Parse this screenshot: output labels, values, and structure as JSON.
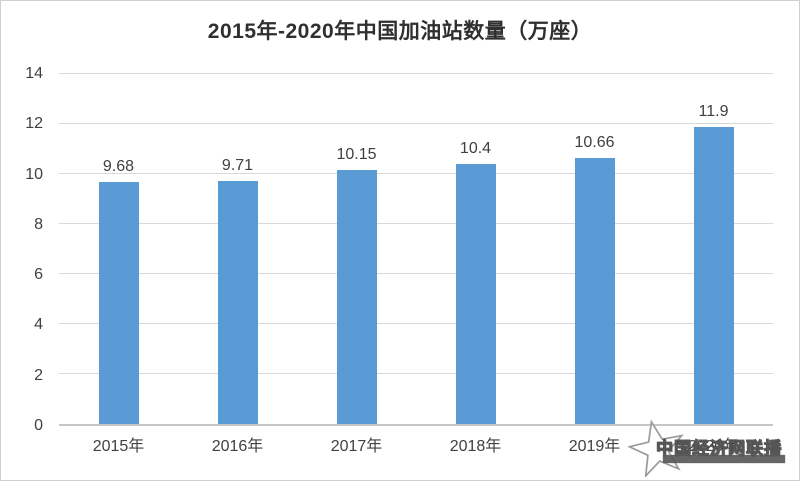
{
  "chart": {
    "title": "2015年-2020年中国加油站数量（万座）"
  },
  "chart_data": {
    "type": "bar",
    "title": "2015年-2020年中国加油站数量（万座）",
    "categories": [
      "2015年",
      "2016年",
      "2017年",
      "2018年",
      "2019年",
      "2020年"
    ],
    "values": [
      9.68,
      9.71,
      10.15,
      10.4,
      10.66,
      11.9
    ],
    "value_labels": [
      "9.68",
      "9.71",
      "10.15",
      "10.4",
      "10.66",
      "11.9"
    ],
    "xlabel": "",
    "ylabel": "",
    "ylim": [
      0,
      14
    ],
    "yticks": [
      0,
      2,
      4,
      6,
      8,
      10,
      12,
      14
    ],
    "grid": "horizontal",
    "legend": "none",
    "bar_color": "#5B9BD5"
  },
  "watermark": {
    "text": "中国经济网联播"
  },
  "colors": {
    "bar": "#5B9BD5",
    "gridline": "#D9D9D9",
    "axis_line": "#C6C6C6",
    "text": "#404040",
    "title_text": "#2F2F2F",
    "background": "#FFFFFF",
    "border": "#D0D0D0"
  }
}
